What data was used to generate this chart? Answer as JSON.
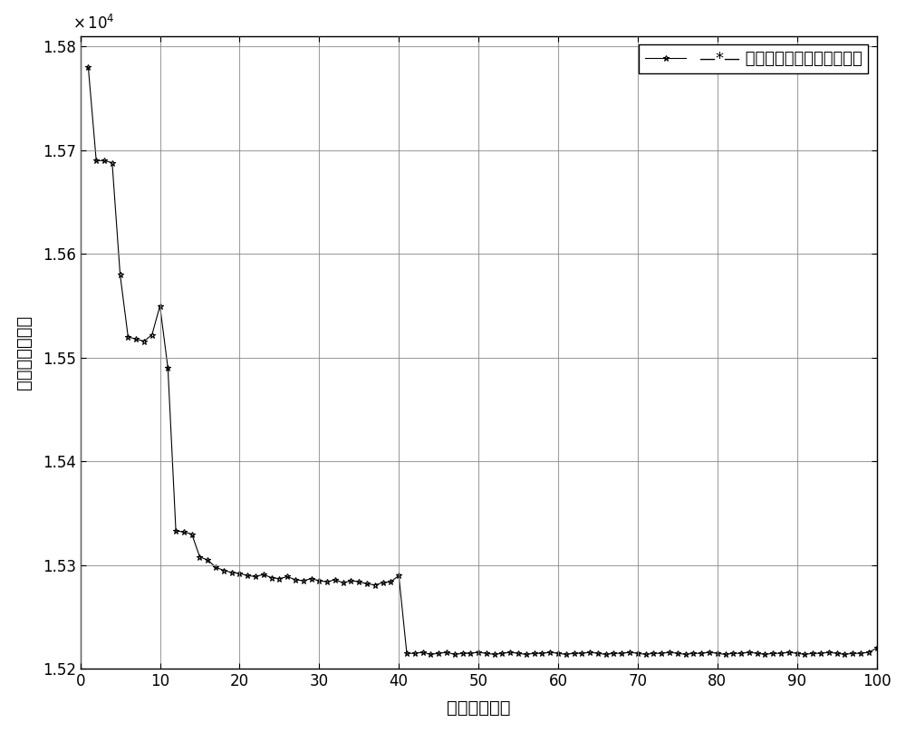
{
  "title": "",
  "xlabel": "算法迭代次数",
  "ylabel": "疏散路径总长度",
  "legend_label": "—*— 势能场蚁群算法疏散路径长",
  "xlim": [
    0,
    100
  ],
  "ylim": [
    15200,
    15810
  ],
  "xticks": [
    0,
    10,
    20,
    30,
    40,
    50,
    60,
    70,
    80,
    90,
    100
  ],
  "ytick_labels": [
    "1.52",
    "1.53",
    "1.54",
    "1.55",
    "1.56",
    "1.57",
    "1.58"
  ],
  "ytick_values": [
    15200,
    15300,
    15400,
    15500,
    15600,
    15700,
    15800
  ],
  "scale_factor": 10000,
  "line_color": "#000000",
  "marker": "*",
  "background_color": "#ffffff",
  "grid_color": "#888888",
  "figsize": [
    10.0,
    8.08
  ],
  "dpi": 100,
  "y_data": [
    15780,
    15690,
    15690,
    15688,
    15580,
    15520,
    15518,
    15516,
    15522,
    15550,
    15490,
    15333,
    15332,
    15330,
    15308,
    15305,
    15298,
    15295,
    15293,
    15292,
    15290,
    15289,
    15291,
    15288,
    15287,
    15289,
    15286,
    15285,
    15287,
    15285,
    15284,
    15286,
    15283,
    15285,
    15284,
    15282,
    15281,
    15283,
    15284,
    15290,
    15215,
    15215,
    15216,
    15214,
    15215,
    15216,
    15214,
    15215,
    15215,
    15216,
    15215,
    15214,
    15215,
    15216,
    15215,
    15214,
    15215,
    15215,
    15216,
    15215,
    15214,
    15215,
    15215,
    15216,
    15215,
    15214,
    15215,
    15215,
    15216,
    15215,
    15214,
    15215,
    15215,
    15216,
    15215,
    15214,
    15215,
    15215,
    15216,
    15215,
    15214,
    15215,
    15215,
    15216,
    15215,
    15214,
    15215,
    15215,
    15216,
    15215,
    15214,
    15215,
    15215,
    15216,
    15215,
    15214,
    15215,
    15215,
    15216,
    15220
  ]
}
